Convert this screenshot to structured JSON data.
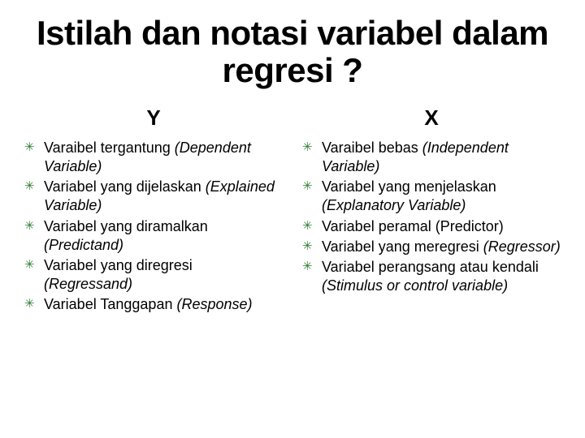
{
  "title": "Istilah dan notasi variabel dalam regresi ?",
  "bullet_color": "#2e7d32",
  "bullet_glyph": "✳",
  "columns": {
    "left": {
      "header": "Y",
      "items": [
        {
          "plain": "Varaibel tergantung ",
          "italic": "(Dependent Variable)"
        },
        {
          "plain": "Variabel yang dijelaskan ",
          "italic": "(Explained Variable)"
        },
        {
          "plain": "Variabel yang diramalkan ",
          "italic": "(Predictand)"
        },
        {
          "plain": "Variabel yang diregresi ",
          "italic": "(Regressand)"
        },
        {
          "plain": "Variabel Tanggapan ",
          "italic": "(Response)"
        }
      ]
    },
    "right": {
      "header": "X",
      "items": [
        {
          "plain": "Varaibel bebas ",
          "italic": "(Independent Variable)"
        },
        {
          "plain": "Variabel yang menjelaskan ",
          "italic": "(Explanatory Variable)"
        },
        {
          "plain": "Variabel peramal (Predictor)",
          "italic": ""
        },
        {
          "plain": "Variabel yang meregresi ",
          "italic": "(Regressor)"
        },
        {
          "plain": "Variabel perangsang atau kendali ",
          "italic": "(Stimulus or control variable)"
        }
      ]
    }
  }
}
